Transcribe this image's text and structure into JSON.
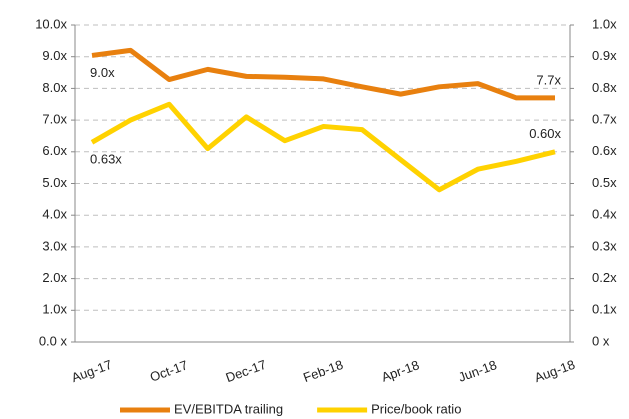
{
  "chart_data": {
    "type": "line",
    "categories": [
      "Aug-17",
      null,
      "Oct-17",
      null,
      "Dec-17",
      null,
      "Feb-18",
      null,
      "Apr-18",
      null,
      "Jun-18",
      null,
      "Aug-18"
    ],
    "series": [
      {
        "name": "EV/EBITDA trailing",
        "color": "#E8800F",
        "axis": "y",
        "values": [
          9.04,
          9.2,
          8.28,
          8.6,
          8.38,
          8.35,
          8.3,
          8.05,
          7.82,
          8.05,
          8.15,
          7.7,
          7.7
        ],
        "value_labels": [
          "9.0x",
          null,
          null,
          null,
          null,
          null,
          null,
          null,
          null,
          null,
          null,
          null,
          "7.7x"
        ]
      },
      {
        "name": "Price/book ratio",
        "color": "#FFD200",
        "axis": "y2",
        "values": [
          0.63,
          0.7,
          0.75,
          0.61,
          0.71,
          0.635,
          0.68,
          0.67,
          0.575,
          0.48,
          0.545,
          0.57,
          0.6
        ],
        "value_labels": [
          "0.63x",
          null,
          null,
          null,
          null,
          null,
          null,
          null,
          null,
          null,
          null,
          null,
          "0.60x"
        ]
      }
    ],
    "ylim": [
      0,
      10
    ],
    "yticks": [
      {
        "value": 0,
        "label": "0.0 x"
      },
      {
        "value": 1,
        "label": "1.0x"
      },
      {
        "value": 2,
        "label": "2.0x"
      },
      {
        "value": 3,
        "label": "3.0x"
      },
      {
        "value": 4,
        "label": "4.0x"
      },
      {
        "value": 5,
        "label": "5.0x"
      },
      {
        "value": 6,
        "label": "6.0x"
      },
      {
        "value": 7,
        "label": "7.0x"
      },
      {
        "value": 8,
        "label": "8.0x"
      },
      {
        "value": 9,
        "label": "9.0x"
      },
      {
        "value": 10,
        "label": "10.0x"
      }
    ],
    "y2lim": [
      0,
      1
    ],
    "y2ticks": [
      {
        "value": 0,
        "label": "0 x"
      },
      {
        "value": 0.1,
        "label": "0.1x"
      },
      {
        "value": 0.2,
        "label": "0.2x"
      },
      {
        "value": 0.3,
        "label": "0.3x"
      },
      {
        "value": 0.4,
        "label": "0.4x"
      },
      {
        "value": 0.5,
        "label": "0.5x"
      },
      {
        "value": 0.6,
        "label": "0.6x"
      },
      {
        "value": 0.7,
        "label": "0.7x"
      },
      {
        "value": 0.8,
        "label": "0.8x"
      },
      {
        "value": 0.9,
        "label": "0.9x"
      },
      {
        "value": 1,
        "label": "1.0x"
      }
    ],
    "grid": true,
    "legend": "bottom"
  }
}
